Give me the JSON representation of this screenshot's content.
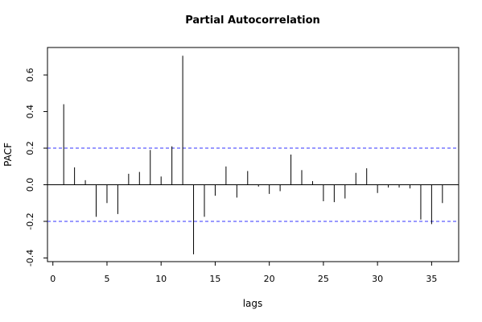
{
  "chart_data": {
    "type": "bar",
    "title": "Partial Autocorrelation",
    "xlabel": "lags",
    "ylabel": "PACF",
    "xlim": [
      -0.5,
      37.5
    ],
    "ylim": [
      -0.42,
      0.75
    ],
    "x_ticks": [
      0,
      5,
      10,
      15,
      20,
      25,
      30,
      35
    ],
    "x_tick_labels": [
      "0",
      "5",
      "10",
      "15",
      "20",
      "25",
      "30",
      "35"
    ],
    "y_ticks": [
      -0.4,
      -0.2,
      0.0,
      0.2,
      0.4,
      0.6
    ],
    "y_tick_labels": [
      "-0.4",
      "-0.2",
      "0.0",
      "0.2",
      "0.4",
      "0.6"
    ],
    "confidence_bounds": [
      0.2,
      -0.2
    ],
    "confidence_color": "#3333ff",
    "bar_color": "#000000",
    "grid": false,
    "lags": [
      1,
      2,
      3,
      4,
      5,
      6,
      7,
      8,
      9,
      10,
      11,
      12,
      13,
      14,
      15,
      16,
      17,
      18,
      19,
      20,
      21,
      22,
      23,
      24,
      25,
      26,
      27,
      28,
      29,
      30,
      31,
      32,
      33,
      34,
      35,
      36
    ],
    "values": [
      0.44,
      0.095,
      0.025,
      -0.175,
      -0.1,
      -0.16,
      0.06,
      0.07,
      0.19,
      0.045,
      0.21,
      0.705,
      -0.38,
      -0.175,
      -0.06,
      0.1,
      -0.07,
      0.075,
      -0.01,
      -0.05,
      -0.035,
      0.165,
      0.08,
      0.02,
      -0.09,
      -0.095,
      -0.075,
      0.065,
      0.09,
      -0.045,
      -0.015,
      -0.015,
      -0.02,
      -0.19,
      -0.215,
      -0.1
    ]
  }
}
